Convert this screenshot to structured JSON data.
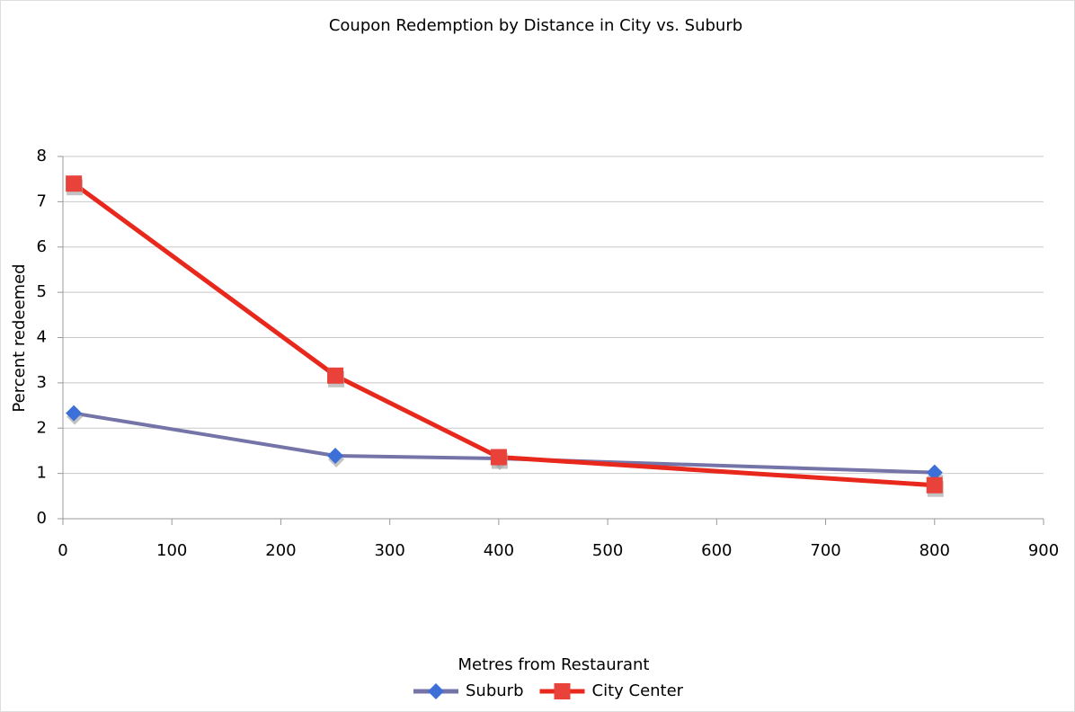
{
  "chart_data": {
    "type": "line",
    "title": "Coupon Redemption by Distance in City vs. Suburb",
    "xlabel": "Metres from Restaurant",
    "ylabel": "Percent redeemed",
    "series": [
      {
        "name": "Suburb",
        "color": "#7474a8",
        "marker_color": "#3d6fd9",
        "marker": "diamond",
        "x": [
          10,
          250,
          400,
          800
        ],
        "values": [
          2.33,
          1.39,
          1.33,
          1.02
        ]
      },
      {
        "name": "City Center",
        "color": "#e8281c",
        "marker_color": "#e8423a",
        "marker": "square",
        "x": [
          10,
          250,
          400,
          800
        ],
        "values": [
          7.4,
          3.16,
          1.36,
          0.74
        ]
      }
    ],
    "xlim": [
      0,
      900
    ],
    "xticks": [
      0,
      100,
      200,
      300,
      400,
      500,
      600,
      700,
      800,
      900
    ],
    "ylim": [
      0,
      8
    ],
    "yticks": [
      0,
      1,
      2,
      3,
      4,
      5,
      6,
      7,
      8
    ],
    "grid": true,
    "legend": "bottom"
  }
}
